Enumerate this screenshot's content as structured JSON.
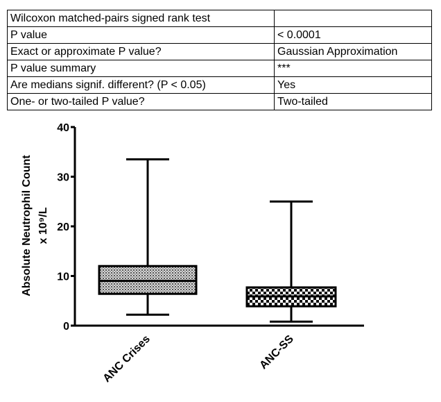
{
  "table": {
    "rows": [
      [
        "Wilcoxon matched-pairs signed rank test"
      ],
      [
        "P value",
        "< 0.0001"
      ],
      [
        "Exact or approximate P value?",
        "Gaussian Approximation"
      ],
      [
        "P value summary",
        "***"
      ],
      [
        "Are medians signif. different? (P < 0.05)",
        "Yes"
      ],
      [
        "One- or two-tailed P value?",
        "Two-tailed"
      ]
    ]
  },
  "chart_data": {
    "type": "box",
    "y_label": [
      "Absolute Neutrophil Count",
      "x 10⁹/L"
    ],
    "categories": [
      "ANC Crises",
      "ANC-SS"
    ],
    "min": [
      2.2,
      0.8
    ],
    "q1": [
      6.4,
      3.9
    ],
    "median": [
      9.0,
      5.9
    ],
    "q3": [
      12.0,
      7.7
    ],
    "max": [
      33.5,
      25.0
    ],
    "ylim": [
      0,
      40
    ],
    "yticks": [
      0,
      10,
      20,
      30,
      40
    ]
  }
}
